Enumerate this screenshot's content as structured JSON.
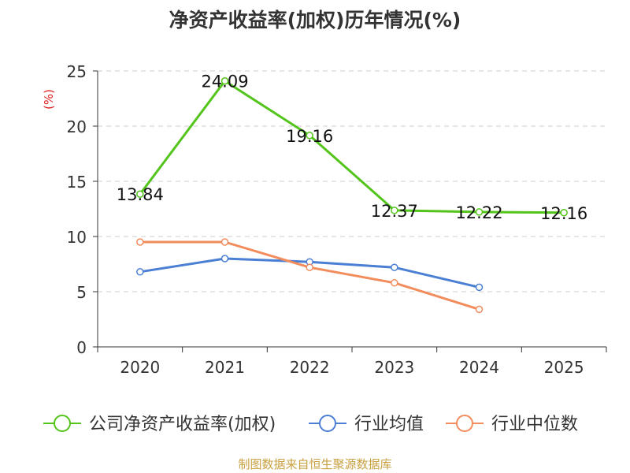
{
  "chart_data": {
    "type": "line",
    "title": "净资产收益率(加权)历年情况(%)",
    "ylabel": "(%)",
    "xlabel": "",
    "categories": [
      "2020",
      "2021",
      "2022",
      "2023",
      "2024",
      "2025"
    ],
    "yticks": [
      "0",
      "5",
      "10",
      "15",
      "20",
      "25"
    ],
    "ylim": [
      0,
      25
    ],
    "grid": "horizontal dashed",
    "legend_position": "bottom",
    "series": [
      {
        "name": "公司净资产收益率(加权)",
        "color": "#52c41a",
        "values": [
          13.84,
          24.09,
          19.16,
          12.37,
          12.22,
          12.16
        ],
        "labels": [
          "13.84",
          "24.09",
          "19.16",
          "12.37",
          "12.22",
          "12.16"
        ]
      },
      {
        "name": "行业均值",
        "color": "#4a7fd4",
        "values": [
          6.8,
          8.0,
          7.7,
          7.2,
          5.4,
          null
        ]
      },
      {
        "name": "行业中位数",
        "color": "#f28c5c",
        "values": [
          9.5,
          9.5,
          7.2,
          5.8,
          3.4,
          null
        ]
      }
    ]
  },
  "source": "制图数据来自恒生聚源数据库"
}
